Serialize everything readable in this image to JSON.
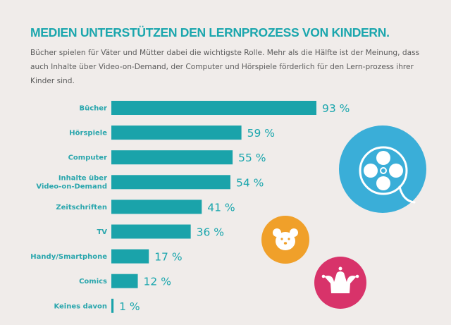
{
  "header": {
    "title": "MEDIEN UNTERSTÜTZEN DEN LERNPROZESS VON KINDERN.",
    "description": "Bücher spielen für Väter und Mütter dabei die wichtigste Rolle. Mehr als die Hälfte ist der Meinung, dass auch Inhalte über Video-on-Demand, der Computer und Hörspiele förderlich für den Lern-prozess ihrer Kinder sind."
  },
  "colors": {
    "bar": "#1aa3aa",
    "accent_text": "#1aa6ad",
    "background": "#f0ecea",
    "film_circle": "#3aaed8",
    "bear_circle": "#f0a02a",
    "jester_circle": "#d8336a"
  },
  "icons": [
    "film-reel-icon",
    "teddy-bear-icon",
    "jester-hat-icon"
  ],
  "chart_data": {
    "type": "bar",
    "orientation": "horizontal",
    "title": "MEDIEN UNTERSTÜTZEN DEN LERNPROZESS VON KINDERN.",
    "xlabel": "",
    "ylabel": "",
    "unit": "%",
    "xlim": [
      0,
      100
    ],
    "grid": false,
    "categories": [
      [
        "Bücher"
      ],
      [
        "Hörspiele"
      ],
      [
        "Computer"
      ],
      [
        "Inhalte über",
        "Video-on-Demand"
      ],
      [
        "Zeitschriften"
      ],
      [
        "TV"
      ],
      [
        "Handy/Smartphone"
      ],
      [
        "Comics"
      ],
      [
        "Keines davon"
      ]
    ],
    "values": [
      93,
      59,
      55,
      54,
      41,
      36,
      17,
      12,
      1
    ],
    "value_labels": [
      "93 %",
      "59 %",
      "55 %",
      "54 %",
      "41 %",
      "36 %",
      "17 %",
      "12 %",
      "1 %"
    ]
  }
}
